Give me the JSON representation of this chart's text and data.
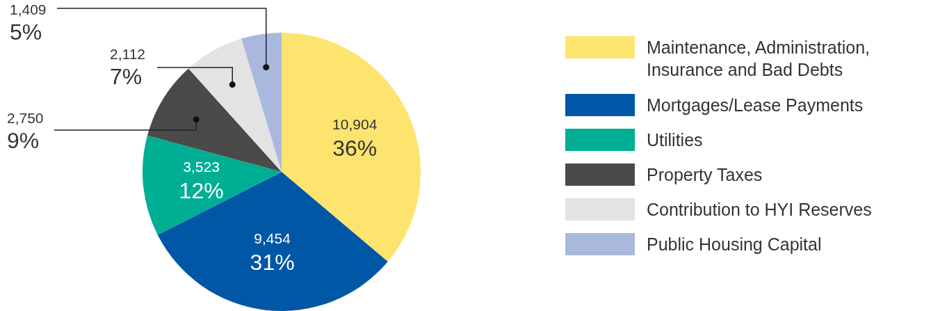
{
  "chart_data": {
    "type": "pie",
    "categories": [
      "Maintenance, Administration, Insurance and Bad Debts",
      "Mortgages/Lease Payments",
      "Utilities",
      "Property Taxes",
      "Contribution to HYI Reserves",
      "Public Housing Capital"
    ],
    "values": [
      10904,
      9454,
      3523,
      2750,
      2112,
      1409
    ],
    "colors": [
      "#fde46e",
      "#0057a5",
      "#00ae94",
      "#4a4a4a",
      "#e3e3e3",
      "#a9b9de"
    ],
    "value_labels": [
      "10,904 36%",
      "9,454 31%",
      "3,523 12%",
      "2,750 9%",
      "2,112 7%",
      "1,409 5%"
    ],
    "legend": "right"
  }
}
